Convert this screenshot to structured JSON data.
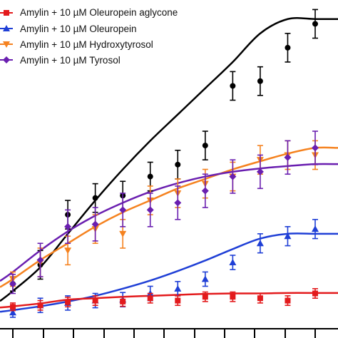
{
  "chart_data": {
    "type": "line",
    "legend_position": "top-left",
    "x": [
      0,
      1,
      2,
      3,
      4,
      5,
      6,
      7,
      8,
      9,
      10,
      11
    ],
    "series": [
      {
        "name": "",
        "color": "#000000",
        "marker": "circle",
        "values": [
          55,
          95,
          200,
          235,
          240,
          280,
          305,
          345,
          470,
          480,
          550,
          600
        ],
        "errors": [
          15,
          30,
          30,
          30,
          30,
          30,
          30,
          30,
          30,
          30,
          30,
          30
        ],
        "fit": [
          40,
          90,
          160,
          230,
          295,
          355,
          410,
          465,
          520,
          580,
          610,
          610
        ]
      },
      {
        "name": "Amylin + 10 µM Oleuropein aglycone",
        "color": "#e31a1c",
        "marker": "square",
        "values": [
          7,
          10,
          17,
          20,
          18,
          25,
          20,
          28,
          28,
          25,
          20,
          35
        ],
        "errors": [
          8,
          10,
          10,
          10,
          10,
          10,
          10,
          10,
          10,
          10,
          10,
          10
        ],
        "fit": [
          8,
          14,
          22,
          25,
          28,
          30,
          32,
          34,
          35,
          35,
          36,
          36
        ]
      },
      {
        "name": "Amylin + 10 µM Oleuropein",
        "color": "#1f3fd6",
        "marker": "triangle",
        "values": [
          -5,
          10,
          15,
          20,
          22,
          35,
          45,
          65,
          100,
          140,
          155,
          170
        ],
        "errors": [
          10,
          15,
          15,
          15,
          15,
          15,
          15,
          15,
          15,
          20,
          20,
          20
        ],
        "fit": [
          0,
          8,
          18,
          30,
          45,
          62,
          82,
          104,
          128,
          150,
          160,
          160
        ]
      },
      {
        "name": "Amylin + 10 µM Hydroxytyrosol",
        "color": "#f5821f",
        "marker": "triangle-down",
        "values": [
          65,
          100,
          125,
          170,
          160,
          230,
          245,
          265,
          280,
          315,
          325,
          325
        ],
        "errors": [
          15,
          30,
          30,
          30,
          30,
          30,
          30,
          30,
          30,
          30,
          30,
          30
        ],
        "fit": [
          65,
          105,
          140,
          175,
          205,
          230,
          255,
          275,
          295,
          312,
          328,
          340
        ]
      },
      {
        "name": "Amylin + 10 µM Tyrosol",
        "color": "#6a1fb0",
        "marker": "diamond",
        "values": [
          55,
          105,
          175,
          180,
          210,
          210,
          225,
          250,
          280,
          290,
          320,
          340
        ],
        "errors": [
          20,
          35,
          35,
          35,
          35,
          35,
          35,
          35,
          35,
          35,
          35,
          35
        ],
        "fit": [
          80,
          125,
          165,
          198,
          225,
          248,
          266,
          280,
          290,
          297,
          302,
          306
        ]
      }
    ],
    "xlim": [
      0,
      11
    ],
    "ylim": [
      -30,
      650
    ],
    "grid": false
  }
}
